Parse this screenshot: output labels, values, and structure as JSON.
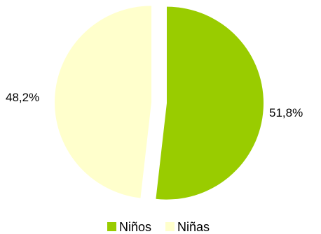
{
  "chart_data": {
    "type": "pie",
    "slices": [
      {
        "name": "Niños",
        "value": 51.8,
        "label": "51,8%",
        "color": "#99cc00"
      },
      {
        "name": "Niñas",
        "value": 48.2,
        "label": "48,2%",
        "color": "#ffffcc"
      }
    ],
    "legend_position": "bottom",
    "exploded": true
  }
}
